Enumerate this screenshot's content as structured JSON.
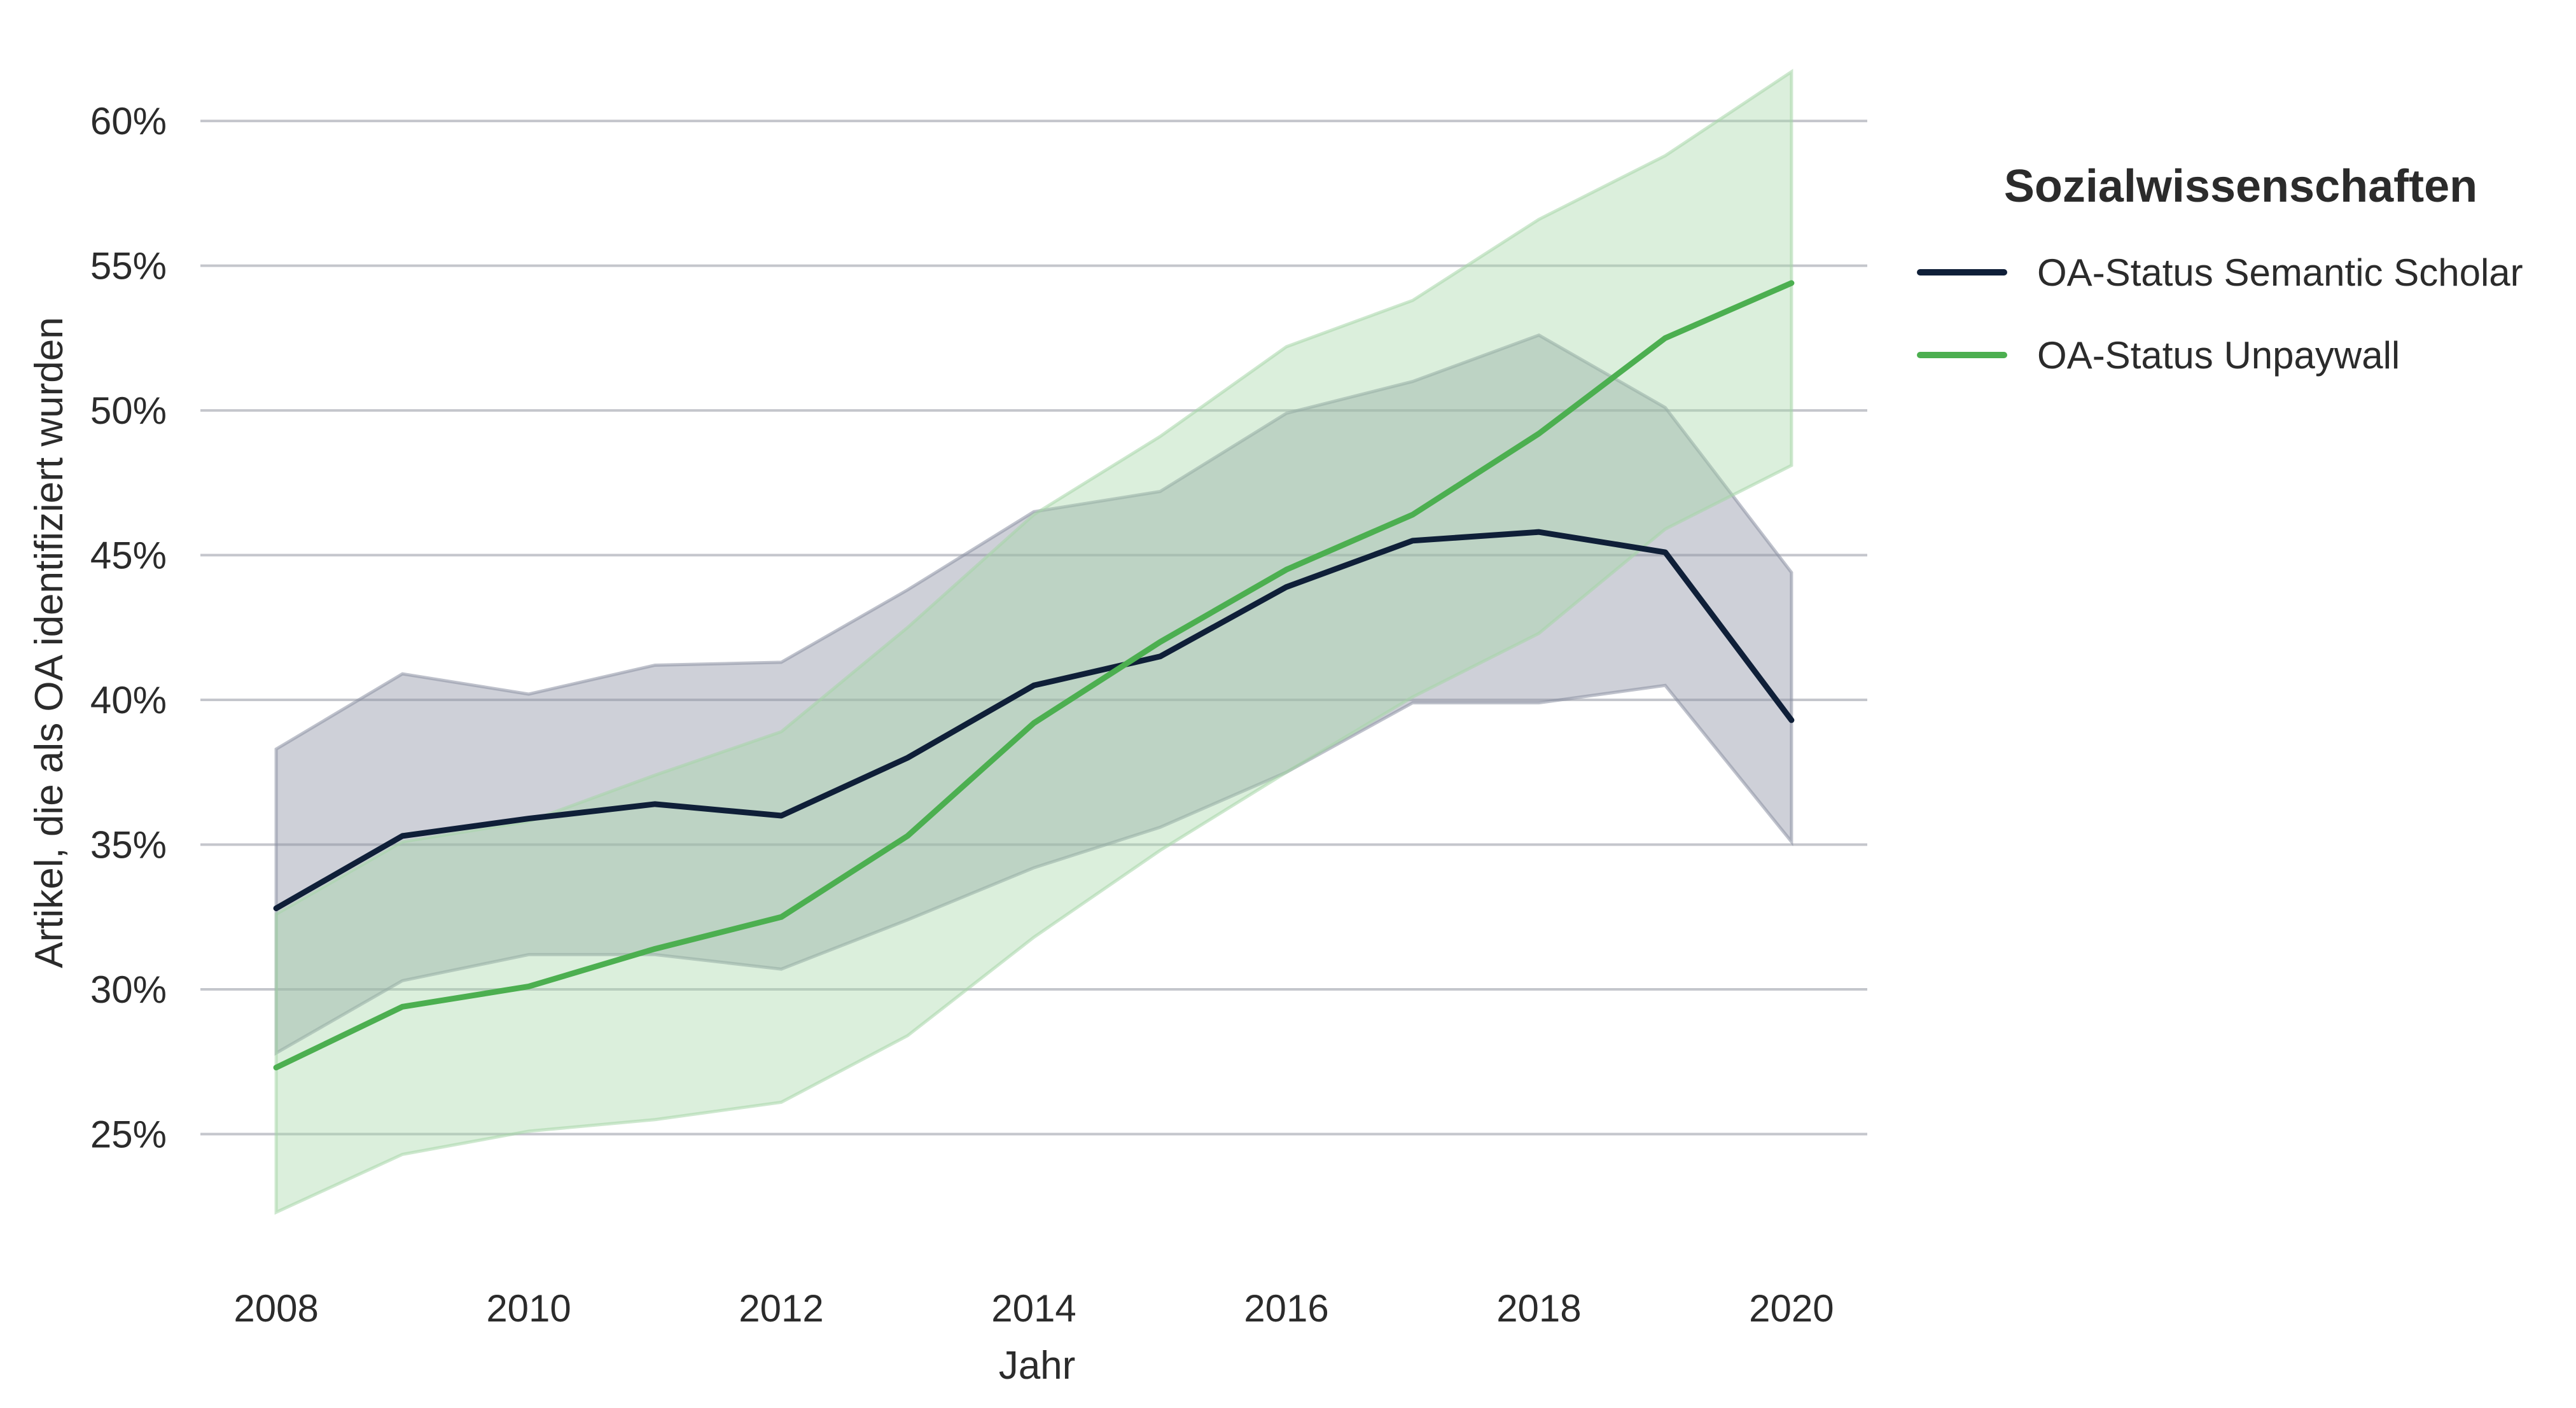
{
  "chart_data": {
    "type": "line",
    "title": "",
    "xlabel": "Jahr",
    "ylabel": "Artikel, die als OA identifiziert wurden",
    "x": [
      2008,
      2009,
      2010,
      2011,
      2012,
      2013,
      2014,
      2015,
      2016,
      2017,
      2018,
      2019,
      2020
    ],
    "x_ticks": [
      2008,
      2010,
      2012,
      2014,
      2016,
      2018,
      2020
    ],
    "x_tick_labels": [
      "2008",
      "2010",
      "2012",
      "2014",
      "2016",
      "2018",
      "2020"
    ],
    "y_ticks": [
      25,
      30,
      35,
      40,
      45,
      50,
      55,
      60
    ],
    "y_tick_labels": [
      "25%",
      "30%",
      "35%",
      "40%",
      "45%",
      "50%",
      "55%",
      "60%"
    ],
    "xlim": [
      2007.4,
      2020.6
    ],
    "ylim": [
      20.0,
      62.2
    ],
    "grid": "horizontal",
    "legend": {
      "title": "Sozialwissenschaften",
      "placement": "right"
    },
    "series": [
      {
        "name": "OA-Status Semantic Scholar",
        "color": "#0f1f38",
        "band_color": "#8a8fa3",
        "values": [
          32.8,
          35.3,
          35.9,
          36.4,
          36.0,
          38.0,
          40.5,
          41.5,
          43.9,
          45.5,
          45.8,
          45.1,
          39.3
        ],
        "lower": [
          27.8,
          30.3,
          31.2,
          31.2,
          30.7,
          32.4,
          34.2,
          35.6,
          37.5,
          39.9,
          39.9,
          40.5,
          35.1
        ],
        "upper": [
          38.3,
          40.9,
          40.2,
          41.2,
          41.3,
          43.8,
          46.5,
          47.2,
          49.9,
          51.0,
          52.6,
          50.1,
          44.4
        ]
      },
      {
        "name": "OA-Status Unpaywall",
        "color": "#4caf50",
        "band_color": "#a5d6a7",
        "values": [
          27.3,
          29.4,
          30.1,
          31.4,
          32.5,
          35.3,
          39.2,
          42.0,
          44.5,
          46.4,
          49.2,
          52.5,
          54.4
        ],
        "lower": [
          22.3,
          24.3,
          25.1,
          25.5,
          26.1,
          28.4,
          31.8,
          34.8,
          37.5,
          40.1,
          42.3,
          45.9,
          48.1
        ],
        "upper": [
          32.6,
          35.1,
          35.8,
          37.4,
          38.9,
          42.5,
          46.4,
          49.1,
          52.2,
          53.8,
          56.6,
          58.8,
          61.7
        ]
      }
    ]
  }
}
